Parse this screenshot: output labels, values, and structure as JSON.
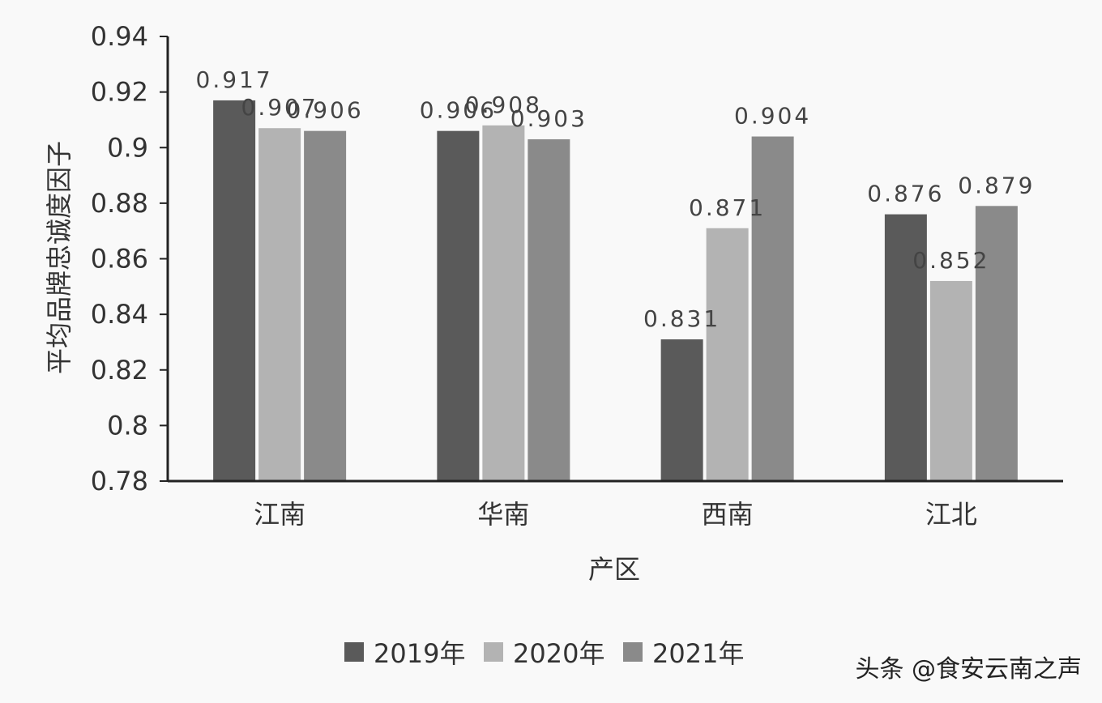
{
  "chart_data": {
    "type": "bar",
    "title": "",
    "xlabel": "产区",
    "ylabel": "平均品牌忠诚度因子",
    "categories": [
      "江南",
      "华南",
      "西南",
      "江北"
    ],
    "series": [
      {
        "name": "2019年",
        "color": "#5a5a5a",
        "values": [
          0.917,
          0.906,
          0.831,
          0.876
        ],
        "labels": [
          "0.917",
          "0.906",
          "0.831",
          "0.876"
        ]
      },
      {
        "name": "2020年",
        "color": "#b3b3b3",
        "values": [
          0.907,
          0.908,
          0.871,
          0.852
        ],
        "labels": [
          "0.907",
          "0.908",
          "0.871",
          "0.852"
        ]
      },
      {
        "name": "2021年",
        "color": "#8a8a8a",
        "values": [
          0.906,
          0.903,
          0.904,
          0.879
        ],
        "labels": [
          "0.906",
          "0.903",
          "0.904",
          "0.879"
        ]
      }
    ],
    "ylim": [
      0.78,
      0.94
    ],
    "yticks": [
      {
        "value": 0.78,
        "label": "0.78"
      },
      {
        "value": 0.8,
        "label": "0.8"
      },
      {
        "value": 0.82,
        "label": "0.82"
      },
      {
        "value": 0.84,
        "label": "0.84"
      },
      {
        "value": 0.86,
        "label": "0.86"
      },
      {
        "value": 0.88,
        "label": "0.88"
      },
      {
        "value": 0.9,
        "label": "0.9"
      },
      {
        "value": 0.92,
        "label": "0.92"
      },
      {
        "value": 0.94,
        "label": "0.94"
      }
    ],
    "grid": false,
    "legend": "bottom"
  },
  "watermark": "头条 @食安云南之声",
  "colors": {
    "axis": "#222222",
    "text": "#333333",
    "background": "#f9f9f9"
  }
}
